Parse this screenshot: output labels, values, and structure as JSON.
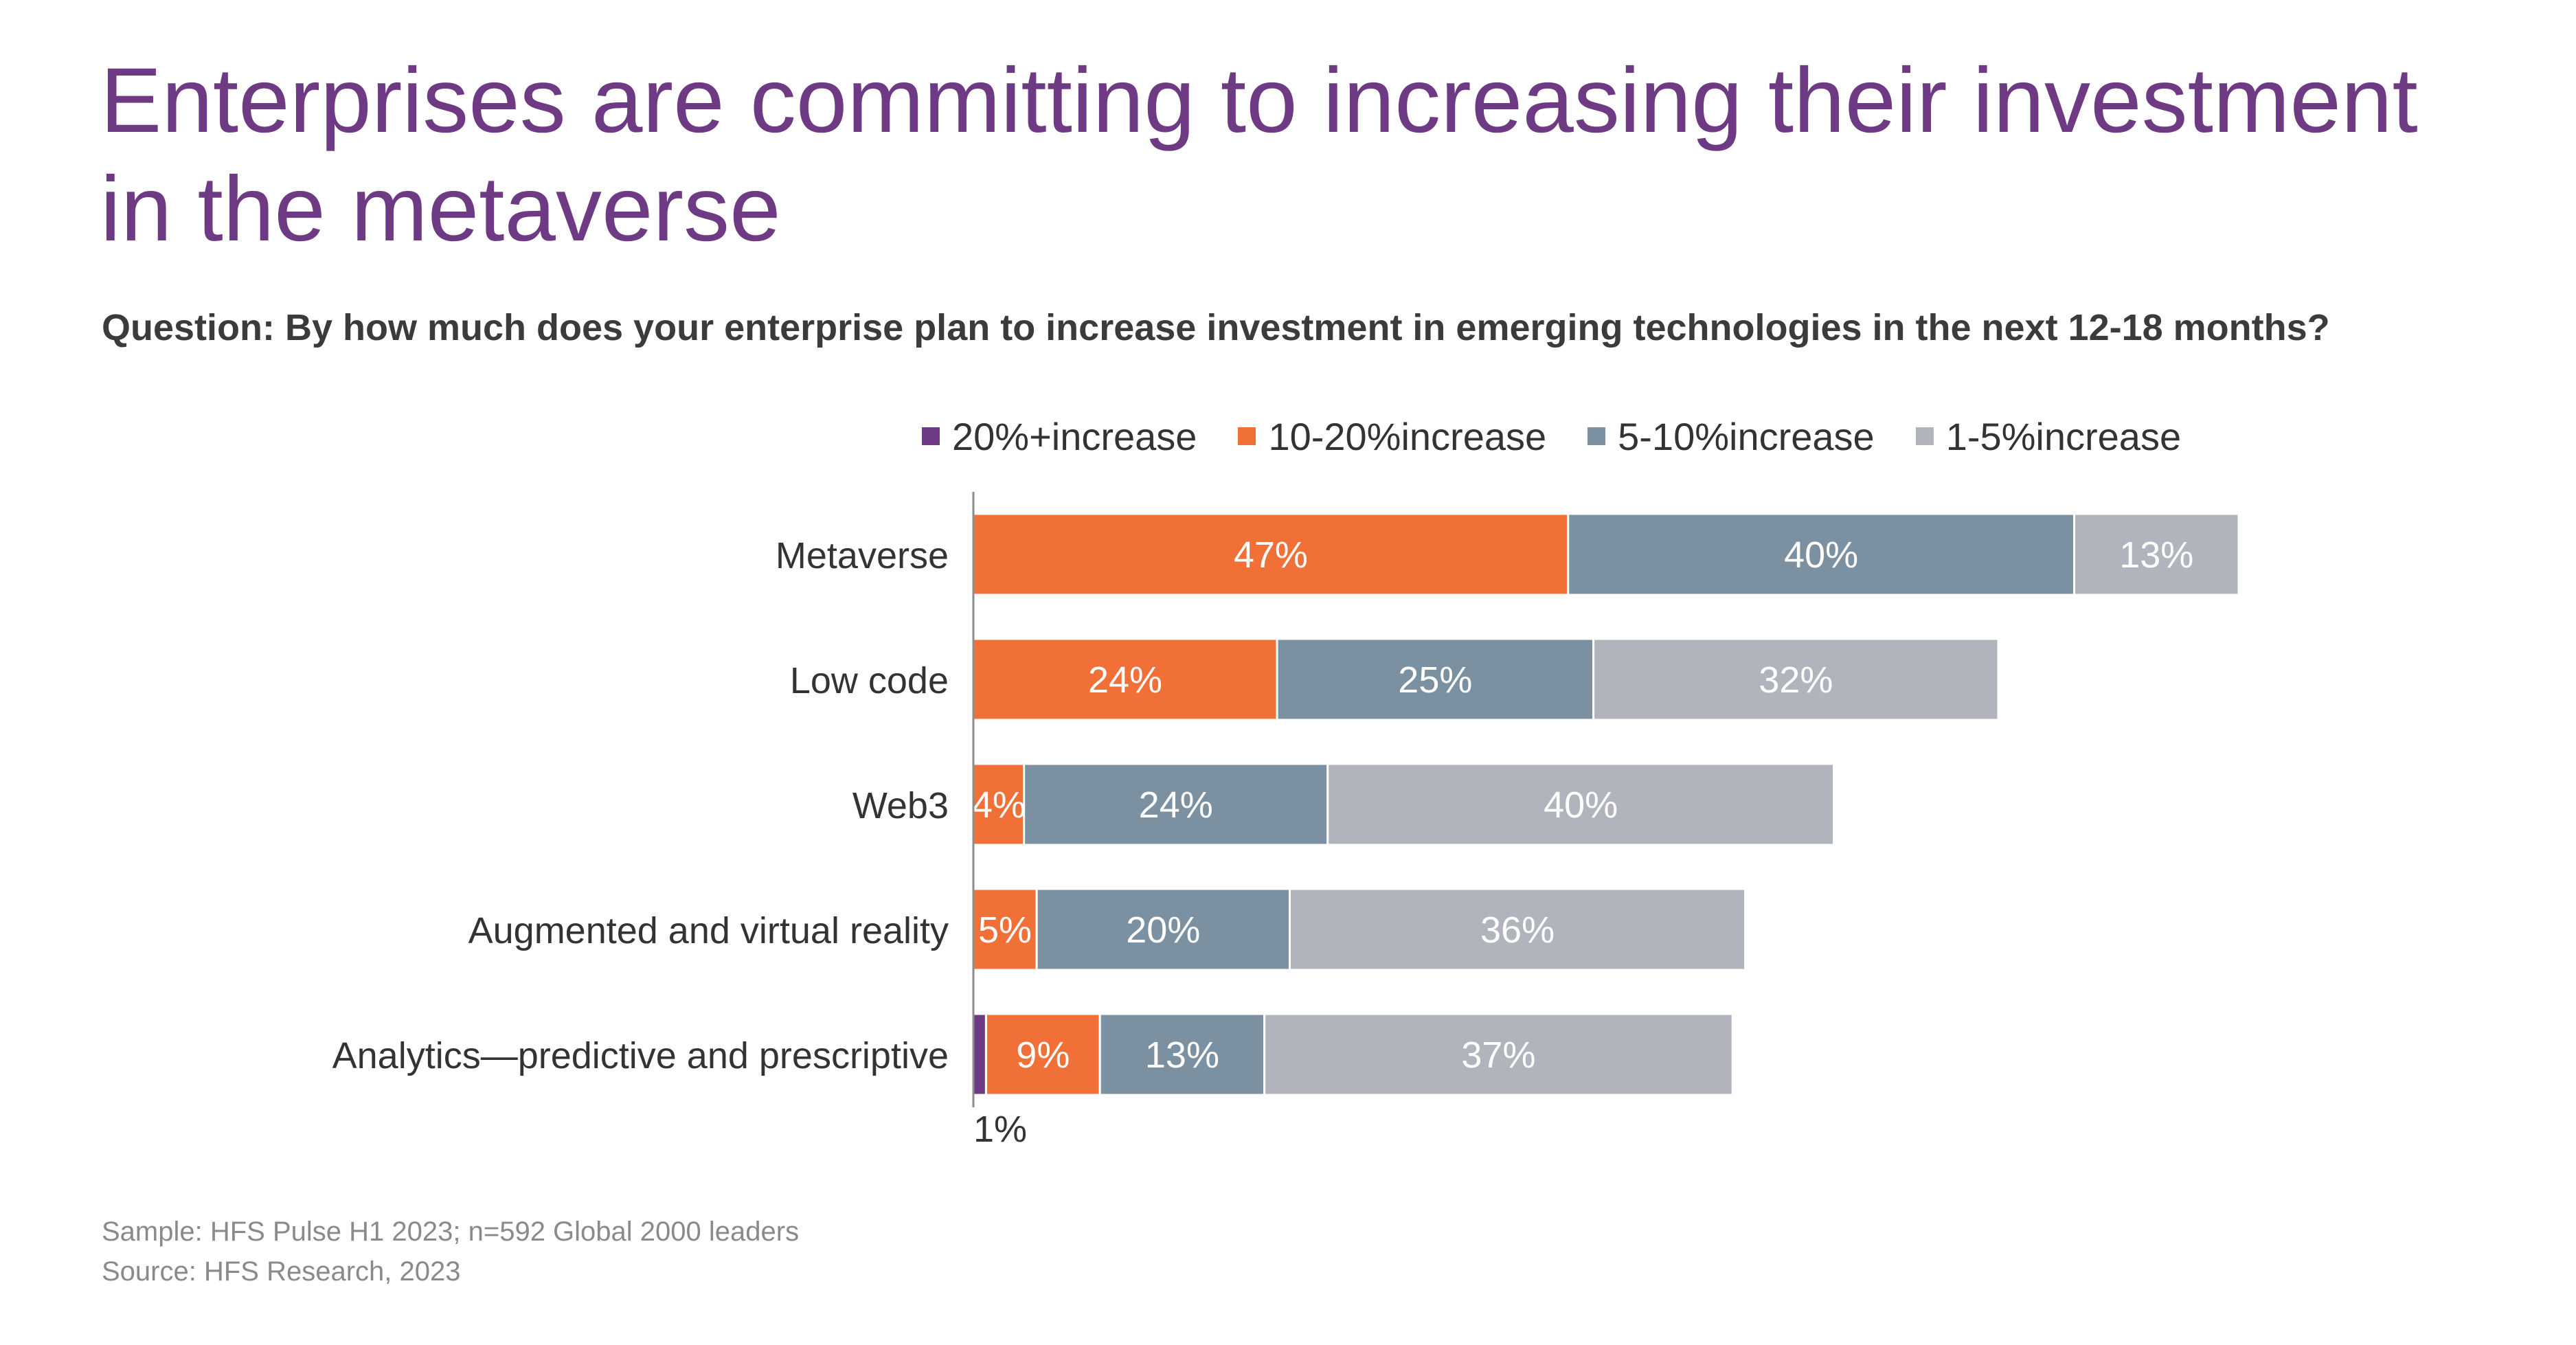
{
  "title": "Enterprises are committing to increasing their investment in the metaverse",
  "subtitle": "Question: By how much does your enterprise plan to increase investment in emerging technologies in the next 12-18 months?",
  "footer": {
    "sample": "Sample: HFS Pulse H1 2023; n=592 Global 2000 leaders",
    "source": "Source: HFS Research, 2023"
  },
  "chart_data": {
    "type": "bar",
    "orientation": "horizontal",
    "stacked": true,
    "categories": [
      "Metaverse",
      "Low code",
      "Web3",
      "Augmented and virtual reality",
      "Analytics—predictive and prescriptive"
    ],
    "series": [
      {
        "name": "20%+increase",
        "color": "#6e3a84",
        "values": [
          0,
          0,
          0,
          0,
          1
        ],
        "labels": [
          "",
          "",
          "",
          "",
          "1%"
        ]
      },
      {
        "name": "10-20%increase",
        "color": "#f07038",
        "values": [
          47,
          24,
          4,
          5,
          9
        ],
        "labels": [
          "47%",
          "24%",
          "4%",
          "5%",
          "9%"
        ]
      },
      {
        "name": "5-10%increase",
        "color": "#7b91a2",
        "values": [
          40,
          25,
          24,
          20,
          13
        ],
        "labels": [
          "40%",
          "25%",
          "24%",
          "20%",
          "13%"
        ]
      },
      {
        "name": "1-5%increase",
        "color": "#b2b4bd",
        "values": [
          13,
          32,
          40,
          36,
          37
        ],
        "labels": [
          "13%",
          "32%",
          "40%",
          "36%",
          "37%"
        ]
      }
    ],
    "xlim": [
      0,
      100
    ],
    "grid": false,
    "legend_position": "top"
  }
}
